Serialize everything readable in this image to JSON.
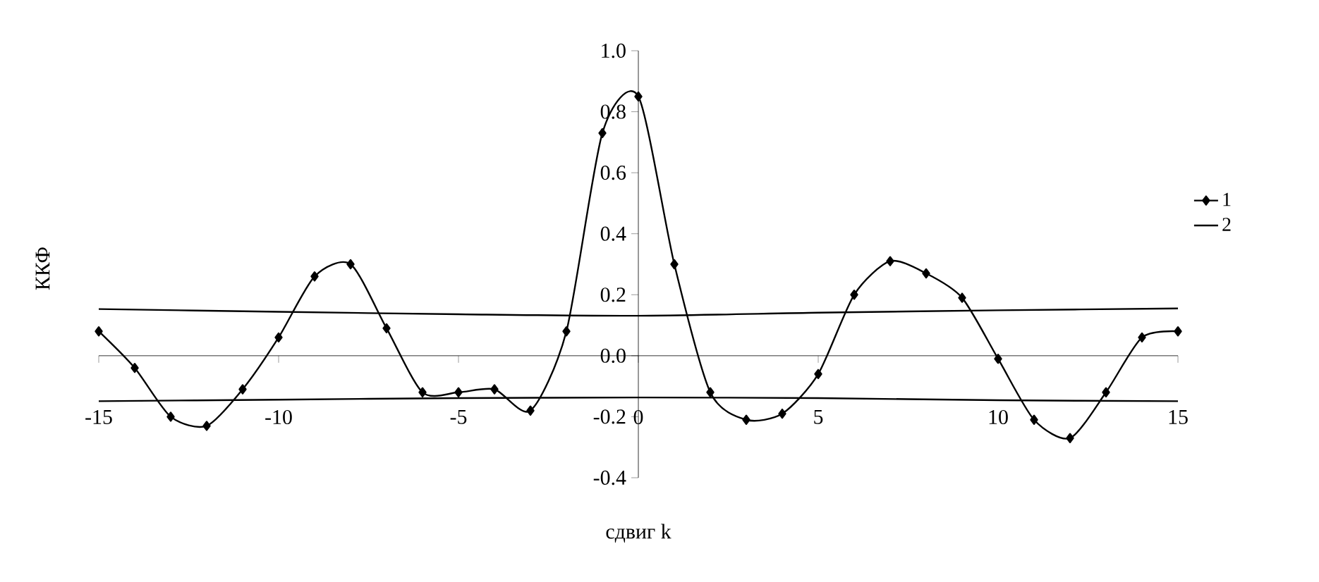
{
  "chart_data": {
    "type": "line",
    "xlabel": "сдвиг k",
    "ylabel": "ККФ",
    "xlim": [
      -15,
      15
    ],
    "ylim": [
      -0.4,
      1.0
    ],
    "xticks": [
      -15,
      -10,
      -5,
      0,
      5,
      10,
      15
    ],
    "yticks": [
      -0.4,
      -0.2,
      {
        "value": 0,
        "label": "0.0"
      },
      0.2,
      0.4,
      0.6,
      0.8,
      {
        "value": 1,
        "label": "1.0"
      }
    ],
    "grid": false,
    "legend": "right",
    "series": [
      {
        "name": "1",
        "color": "#000000",
        "marker": "diamond",
        "x": [
          -15,
          -14,
          -13,
          -12,
          -11,
          -10,
          -9,
          -8,
          -7,
          -6,
          -5,
          -4,
          -3,
          -2,
          -1,
          0,
          1,
          2,
          3,
          4,
          5,
          6,
          7,
          8,
          9,
          10,
          11,
          12,
          13,
          14,
          15
        ],
        "values": [
          0.08,
          -0.04,
          -0.2,
          -0.23,
          -0.11,
          0.06,
          0.26,
          0.3,
          0.09,
          -0.12,
          -0.12,
          -0.11,
          -0.18,
          0.08,
          0.73,
          0.85,
          0.3,
          -0.12,
          -0.21,
          -0.19,
          -0.06,
          0.2,
          0.31,
          0.27,
          0.19,
          -0.01,
          -0.21,
          -0.27,
          -0.12,
          0.06,
          0.08
        ]
      },
      {
        "name": "2",
        "color": "#000000",
        "marker": "none",
        "x": [
          -15,
          -10,
          -5,
          0,
          5,
          10,
          15
        ],
        "values": [
          0.153,
          0.144,
          0.136,
          0.131,
          0.141,
          0.149,
          0.155
        ]
      },
      {
        "color": "#000000",
        "marker": "none",
        "x": [
          -15,
          -10,
          -5,
          0,
          5,
          10,
          15
        ],
        "values": [
          -0.149,
          -0.144,
          -0.139,
          -0.137,
          -0.139,
          -0.146,
          -0.149
        ]
      }
    ]
  }
}
